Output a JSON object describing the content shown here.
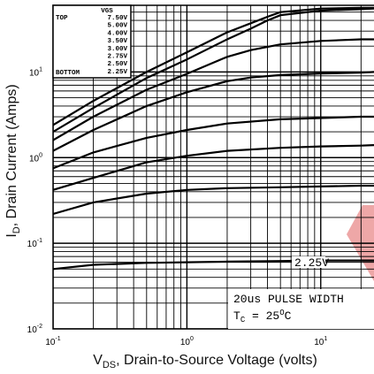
{
  "chart_data": {
    "type": "line",
    "title": "",
    "xlabel": "V_DS, Drain-to-Source Voltage (volts)",
    "xlabel_main": "V",
    "xlabel_sub": "DS",
    "xlabel_rest": ", Drain-to-Source Voltage (volts)",
    "ylabel": "I_D, Drain Current (Amps)",
    "ylabel_main": "I",
    "ylabel_sub": "D",
    "ylabel_rest": ", Drain Current (Amps)",
    "xscale": "log",
    "yscale": "log",
    "xlim": [
      0.1,
      25
    ],
    "ylim": [
      0.01,
      60
    ],
    "grid": true,
    "x_ticks": [
      {
        "value": 0.1,
        "base": "10",
        "exp": "-1"
      },
      {
        "value": 1,
        "base": "10",
        "exp": "0"
      },
      {
        "value": 10,
        "base": "10",
        "exp": "1"
      }
    ],
    "y_ticks": [
      {
        "value": 0.01,
        "base": "10",
        "exp": "-2"
      },
      {
        "value": 0.1,
        "base": "10",
        "exp": "-1"
      },
      {
        "value": 1,
        "base": "10",
        "exp": "0"
      },
      {
        "value": 10,
        "base": "10",
        "exp": "1"
      }
    ],
    "legend": {
      "placement": "top-left",
      "header": "VGS",
      "top_label": "TOP",
      "bottom_label": "BOTTOM",
      "entries": [
        "7.50V",
        "5.00V",
        "4.00V",
        "3.50V",
        "3.00V",
        "2.75V",
        "2.50V",
        "2.25V"
      ]
    },
    "series": [
      {
        "x": [
          0.1,
          0.2,
          0.5,
          1,
          2,
          3,
          4,
          5,
          10,
          20,
          25
        ],
        "values": [
          2.4,
          4.6,
          10,
          17,
          29,
          37,
          44,
          50,
          55,
          56,
          56
        ]
      },
      {
        "x": [
          0.1,
          0.2,
          0.5,
          1,
          2,
          3,
          4,
          5,
          10,
          20,
          25
        ],
        "values": [
          2.0,
          3.8,
          8.5,
          14,
          24,
          32,
          40,
          46,
          52,
          54,
          55
        ]
      },
      {
        "x": [
          0.1,
          0.2,
          0.5,
          1,
          2,
          3,
          5,
          10,
          20,
          25
        ],
        "values": [
          1.6,
          3.0,
          6.2,
          9.5,
          15,
          18,
          21,
          23,
          24,
          24
        ]
      },
      {
        "x": [
          0.1,
          0.2,
          0.5,
          1,
          2,
          3,
          5,
          10,
          20,
          25
        ],
        "values": [
          1.2,
          2.1,
          4.0,
          5.8,
          7.8,
          8.6,
          9.2,
          9.6,
          9.8,
          10
        ]
      },
      {
        "x": [
          0.1,
          0.2,
          0.5,
          1,
          2,
          5,
          10,
          20,
          25
        ],
        "values": [
          0.75,
          1.15,
          1.7,
          2.1,
          2.5,
          2.8,
          2.9,
          3.0,
          3.0
        ]
      },
      {
        "x": [
          0.1,
          0.2,
          0.5,
          1,
          2,
          5,
          10,
          20,
          25
        ],
        "values": [
          0.42,
          0.58,
          0.88,
          1.05,
          1.2,
          1.3,
          1.35,
          1.38,
          1.4
        ]
      },
      {
        "x": [
          0.1,
          0.2,
          0.5,
          1,
          2,
          5,
          10,
          20,
          25
        ],
        "values": [
          0.22,
          0.3,
          0.38,
          0.42,
          0.44,
          0.45,
          0.46,
          0.47,
          0.47
        ]
      },
      {
        "x": [
          0.1,
          0.2,
          0.5,
          1,
          2,
          5,
          10,
          20,
          25
        ],
        "values": [
          0.05,
          0.056,
          0.059,
          0.06,
          0.061,
          0.062,
          0.063,
          0.063,
          0.063
        ]
      }
    ],
    "annotations": [
      {
        "text": "2.25V"
      },
      {
        "line1": "20us PULSE WIDTH",
        "line2_main": "T",
        "line2_sub": "C",
        "line2_rest": " = 25",
        "line2_sup": "O",
        "line2_end": "C"
      }
    ],
    "overlay_color": "#e88a8a"
  }
}
